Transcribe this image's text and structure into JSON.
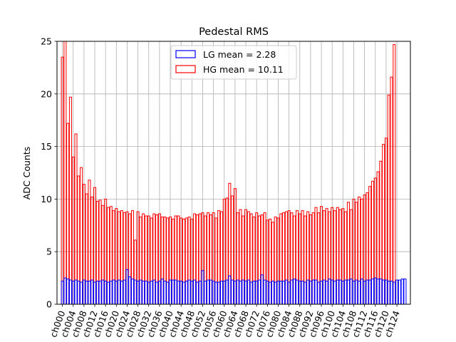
{
  "chart_data": {
    "type": "bar",
    "title": "Pedestal RMS",
    "xlabel": "",
    "ylabel": "ADC Counts",
    "ylim": [
      0,
      25
    ],
    "yticks": [
      0,
      5,
      10,
      15,
      20,
      25
    ],
    "grid": true,
    "legend_position": "top-center",
    "categories": [
      "ch000",
      "ch001",
      "ch002",
      "ch003",
      "ch004",
      "ch005",
      "ch006",
      "ch007",
      "ch008",
      "ch009",
      "ch010",
      "ch011",
      "ch012",
      "ch013",
      "ch014",
      "ch015",
      "ch016",
      "ch017",
      "ch018",
      "ch019",
      "ch020",
      "ch021",
      "ch022",
      "ch023",
      "ch024",
      "ch025",
      "ch026",
      "ch027",
      "ch028",
      "ch029",
      "ch030",
      "ch031",
      "ch032",
      "ch033",
      "ch034",
      "ch035",
      "ch036",
      "ch037",
      "ch038",
      "ch039",
      "ch040",
      "ch041",
      "ch042",
      "ch043",
      "ch044",
      "ch045",
      "ch046",
      "ch047",
      "ch048",
      "ch049",
      "ch050",
      "ch051",
      "ch052",
      "ch053",
      "ch054",
      "ch055",
      "ch056",
      "ch057",
      "ch058",
      "ch059",
      "ch060",
      "ch061",
      "ch062",
      "ch063",
      "ch064",
      "ch065",
      "ch066",
      "ch067",
      "ch068",
      "ch069",
      "ch070",
      "ch071",
      "ch072",
      "ch073",
      "ch074",
      "ch075",
      "ch076",
      "ch077",
      "ch078",
      "ch079",
      "ch080",
      "ch081",
      "ch082",
      "ch083",
      "ch084",
      "ch085",
      "ch086",
      "ch087",
      "ch088",
      "ch089",
      "ch090",
      "ch091",
      "ch092",
      "ch093",
      "ch094",
      "ch095",
      "ch096",
      "ch097",
      "ch098",
      "ch099",
      "ch100",
      "ch101",
      "ch102",
      "ch103",
      "ch104",
      "ch105",
      "ch106",
      "ch107",
      "ch108",
      "ch109",
      "ch110",
      "ch111",
      "ch112",
      "ch113",
      "ch114",
      "ch115",
      "ch116",
      "ch117",
      "ch118",
      "ch119",
      "ch120",
      "ch121",
      "ch122",
      "ch123",
      "ch124",
      "ch125",
      "ch126",
      "ch127"
    ],
    "tick_labels": [
      "ch000",
      "ch004",
      "ch008",
      "ch012",
      "ch016",
      "ch020",
      "ch024",
      "ch028",
      "ch032",
      "ch036",
      "ch040",
      "ch044",
      "ch048",
      "ch052",
      "ch056",
      "ch060",
      "ch064",
      "ch068",
      "ch072",
      "ch076",
      "ch080",
      "ch084",
      "ch088",
      "ch092",
      "ch096",
      "ch100",
      "ch104",
      "ch108",
      "ch112",
      "ch116",
      "ch120",
      "ch124"
    ],
    "series": [
      {
        "name": "LG mean = 2.28",
        "color": "#0000ff",
        "values": [
          2.2,
          2.5,
          2.4,
          2.3,
          2.2,
          2.3,
          2.2,
          2.1,
          2.3,
          2.2,
          2.2,
          2.3,
          2.1,
          2.2,
          2.2,
          2.3,
          2.2,
          2.1,
          2.2,
          2.3,
          2.2,
          2.3,
          2.2,
          2.3,
          3.3,
          2.6,
          2.4,
          2.3,
          2.2,
          2.3,
          2.2,
          2.2,
          2.1,
          2.2,
          2.3,
          2.1,
          2.2,
          2.4,
          2.2,
          2.1,
          2.3,
          2.3,
          2.3,
          2.2,
          2.2,
          2.1,
          2.2,
          2.3,
          2.2,
          2.3,
          2.1,
          2.2,
          3.2,
          2.2,
          2.3,
          2.3,
          2.2,
          2.1,
          2.1,
          2.2,
          2.2,
          2.3,
          2.7,
          2.3,
          2.2,
          2.3,
          2.2,
          2.3,
          2.2,
          2.3,
          2.1,
          2.2,
          2.2,
          2.3,
          2.8,
          2.3,
          2.2,
          2.1,
          2.2,
          2.1,
          2.2,
          2.2,
          2.2,
          2.3,
          2.1,
          2.3,
          2.4,
          2.3,
          2.2,
          2.2,
          2.1,
          2.3,
          2.2,
          2.3,
          2.3,
          2.1,
          2.2,
          2.3,
          2.2,
          2.4,
          2.3,
          2.2,
          2.3,
          2.3,
          2.2,
          2.3,
          2.3,
          2.4,
          2.2,
          2.3,
          2.2,
          2.4,
          2.2,
          2.3,
          2.3,
          2.4,
          2.5,
          2.4,
          2.4,
          2.3,
          2.3,
          2.2,
          2.2,
          2.1,
          2.3,
          2.3,
          2.4,
          2.4
        ]
      },
      {
        "name": "HG mean = 10.11",
        "color": "#ff0000",
        "values": [
          23.5,
          25.0,
          17.2,
          19.7,
          14.0,
          16.2,
          12.2,
          13.0,
          11.4,
          10.5,
          11.8,
          10.2,
          11.1,
          9.8,
          9.9,
          9.4,
          10.0,
          9.2,
          9.3,
          8.9,
          9.1,
          8.8,
          8.9,
          8.7,
          8.8,
          8.6,
          8.9,
          6.1,
          8.8,
          8.3,
          8.6,
          8.4,
          8.4,
          8.2,
          8.6,
          8.5,
          8.6,
          8.3,
          8.3,
          8.2,
          8.3,
          8.1,
          8.4,
          8.4,
          8.2,
          8.1,
          8.2,
          8.3,
          8.1,
          8.6,
          8.5,
          8.6,
          8.7,
          8.4,
          8.7,
          8.5,
          8.7,
          8.2,
          8.9,
          8.8,
          10.0,
          10.1,
          11.5,
          10.3,
          11.0,
          8.7,
          9.0,
          8.4,
          9.0,
          8.8,
          8.6,
          8.3,
          8.7,
          8.4,
          8.5,
          8.7,
          8.0,
          8.1,
          7.8,
          8.3,
          8.2,
          8.6,
          8.7,
          8.8,
          8.9,
          8.7,
          8.4,
          8.9,
          8.6,
          8.9,
          8.4,
          8.8,
          8.5,
          8.7,
          9.2,
          8.7,
          9.3,
          8.9,
          9.1,
          8.8,
          9.2,
          8.9,
          9.2,
          9.0,
          9.1,
          8.8,
          9.7,
          9.0,
          10.0,
          9.7,
          10.2,
          10.0,
          10.4,
          10.6,
          11.2,
          11.7,
          12.0,
          12.6,
          13.6,
          15.2,
          15.8,
          19.9,
          21.6,
          24.7,
          0,
          0,
          0,
          0
        ]
      }
    ]
  }
}
